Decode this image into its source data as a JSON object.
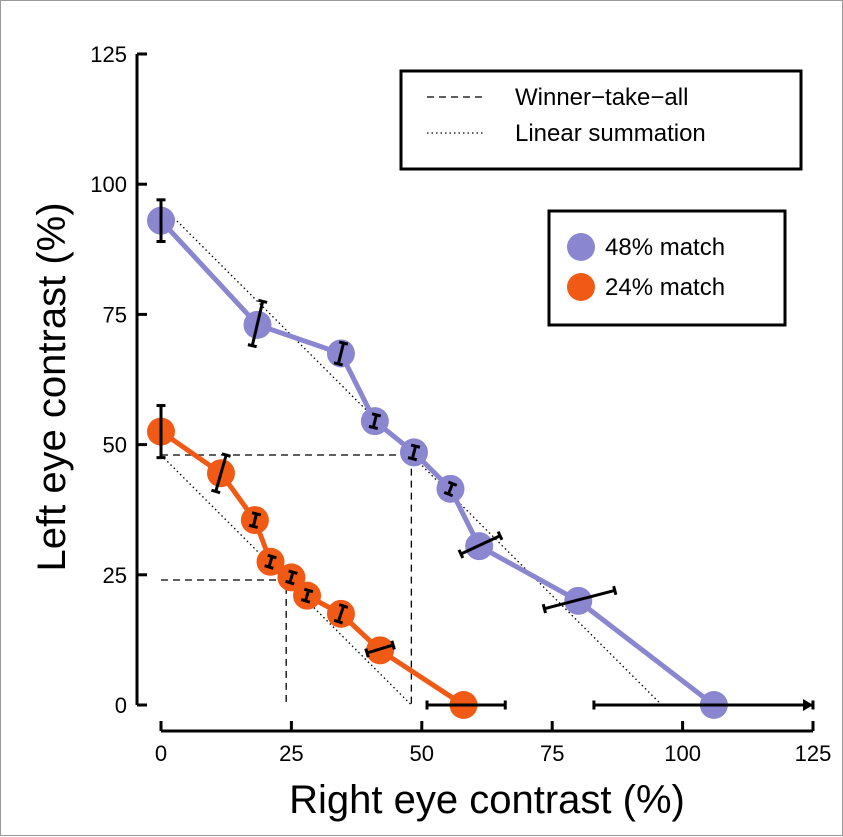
{
  "chart_data": {
    "type": "line",
    "title": "",
    "xlabel": "Right eye contrast (%)",
    "ylabel": "Left eye contrast (%)",
    "xlim": [
      0,
      125
    ],
    "ylim": [
      0,
      125
    ],
    "xticks": [
      "0",
      "25",
      "50",
      "75",
      "100",
      "125"
    ],
    "yticks": [
      "0",
      "25",
      "50",
      "75",
      "100",
      "125"
    ],
    "grid": false,
    "series": [
      {
        "name": "48% match",
        "color": "#8b86d0",
        "points": [
          {
            "x": 0,
            "y": 93
          },
          {
            "x": 18.5,
            "y": 73
          },
          {
            "x": 34.5,
            "y": 67.5
          },
          {
            "x": 41,
            "y": 54.5
          },
          {
            "x": 48.5,
            "y": 48.5
          },
          {
            "x": 55.5,
            "y": 41.5
          },
          {
            "x": 61,
            "y": 30.5
          },
          {
            "x": 80,
            "y": 20
          },
          {
            "x": 106,
            "y": 0
          }
        ],
        "error_bars": [
          {
            "x1": 0,
            "y1": 89,
            "x2": 0,
            "y2": 97
          },
          {
            "x1": 17.5,
            "y1": 69,
            "x2": 19.5,
            "y2": 77.5
          },
          {
            "x1": 34,
            "y1": 65.5,
            "x2": 35,
            "y2": 69.5
          },
          {
            "x1": 40.7,
            "y1": 53.3,
            "x2": 41.3,
            "y2": 55.7
          },
          {
            "x1": 48.2,
            "y1": 47.3,
            "x2": 48.8,
            "y2": 49.7
          },
          {
            "x1": 55.1,
            "y1": 40.5,
            "x2": 55.9,
            "y2": 42.5
          },
          {
            "x1": 57.5,
            "y1": 29,
            "x2": 65,
            "y2": 32.5
          },
          {
            "x1": 73.5,
            "y1": 18.5,
            "x2": 87,
            "y2": 22
          },
          {
            "x1": 83,
            "y1": 0,
            "x2": 125,
            "y2": 0
          }
        ]
      },
      {
        "name": "24% match",
        "color": "#f05a14",
        "points": [
          {
            "x": 0,
            "y": 52.5
          },
          {
            "x": 11.5,
            "y": 44.5
          },
          {
            "x": 18,
            "y": 35.5
          },
          {
            "x": 21,
            "y": 27.5
          },
          {
            "x": 25,
            "y": 24.5
          },
          {
            "x": 28,
            "y": 21
          },
          {
            "x": 34.5,
            "y": 17.5
          },
          {
            "x": 42,
            "y": 10.5
          },
          {
            "x": 58,
            "y": 0
          }
        ],
        "error_bars": [
          {
            "x1": 0,
            "y1": 47.5,
            "x2": 0,
            "y2": 57.5
          },
          {
            "x1": 10.5,
            "y1": 41,
            "x2": 12.5,
            "y2": 48
          },
          {
            "x1": 17.7,
            "y1": 34.3,
            "x2": 18.3,
            "y2": 36.7
          },
          {
            "x1": 20.7,
            "y1": 26.5,
            "x2": 21.3,
            "y2": 28.5
          },
          {
            "x1": 24.7,
            "y1": 23.5,
            "x2": 25.3,
            "y2": 25.5
          },
          {
            "x1": 27.7,
            "y1": 20,
            "x2": 28.3,
            "y2": 22
          },
          {
            "x1": 34,
            "y1": 16,
            "x2": 35,
            "y2": 19
          },
          {
            "x1": 39.5,
            "y1": 10,
            "x2": 44.5,
            "y2": 11.5
          },
          {
            "x1": 51,
            "y1": 0,
            "x2": 66,
            "y2": 0
          }
        ]
      }
    ],
    "reference_lines": [
      {
        "name": "Winner−take−all",
        "style": "dashed",
        "segments": [
          [
            [
              0,
              48
            ],
            [
              48,
              48
            ],
            [
              48,
              0
            ]
          ],
          [
            [
              0,
              24
            ],
            [
              24,
              24
            ],
            [
              24,
              0
            ]
          ]
        ]
      },
      {
        "name": "Linear summation",
        "style": "dotted",
        "segments": [
          [
            [
              0,
              96
            ],
            [
              96,
              0
            ]
          ],
          [
            [
              0,
              48
            ],
            [
              48,
              0
            ]
          ]
        ]
      }
    ],
    "legend_lines": {
      "placement": "top-right",
      "entries": [
        "Winner−take−all",
        "Linear summation"
      ]
    },
    "legend_markers": {
      "placement": "upper-right",
      "entries": [
        "48% match",
        "24% match"
      ]
    }
  }
}
